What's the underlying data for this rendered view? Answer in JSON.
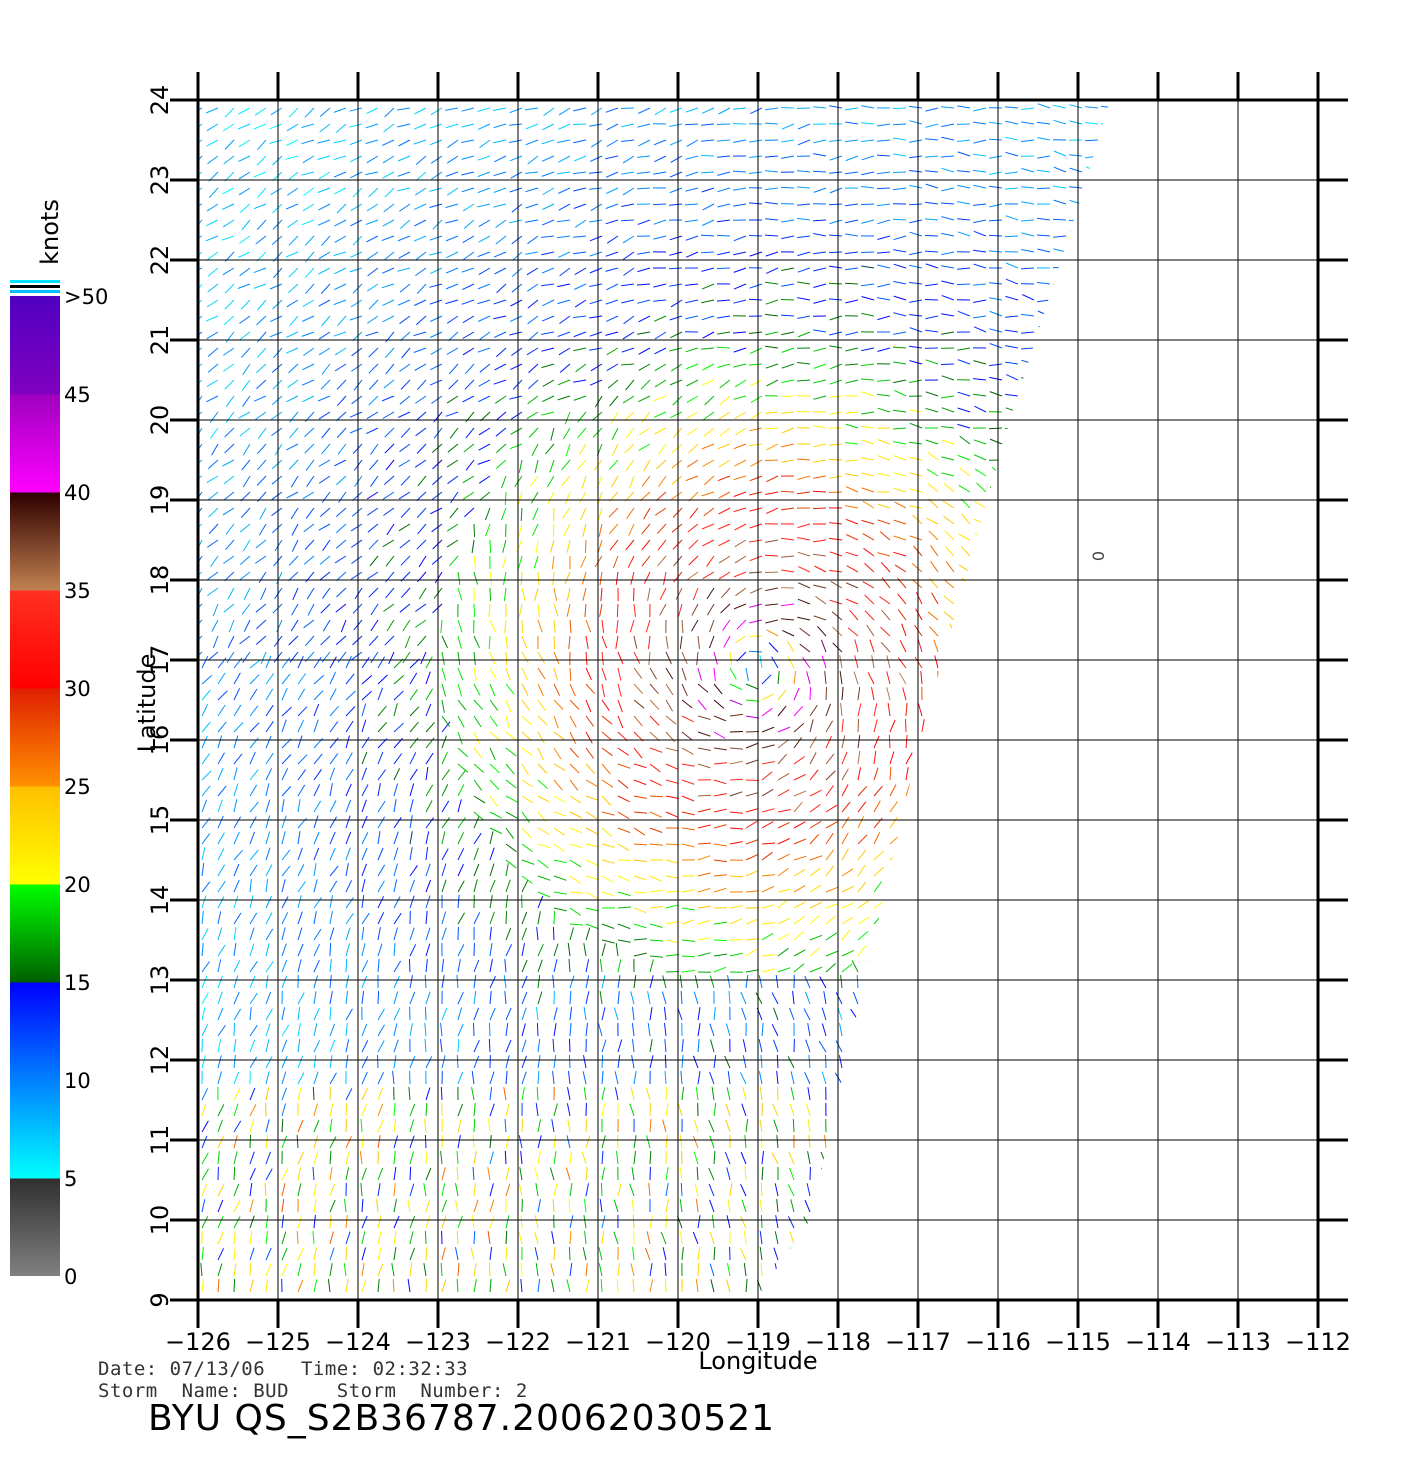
{
  "map": {
    "x_ticks": [
      "−126",
      "−125",
      "−124",
      "−123",
      "−122",
      "−121",
      "−120",
      "−119",
      "−118",
      "−117",
      "−116",
      "−115",
      "−114",
      "−113",
      "−112"
    ],
    "y_ticks": [
      "9",
      "10",
      "11",
      "12",
      "13",
      "14",
      "15",
      "16",
      "17",
      "18",
      "19",
      "20",
      "21",
      "22",
      "23",
      "24"
    ],
    "x_label": "Longitude",
    "y_label": "Latitude",
    "lon_range": [
      -126,
      -112
    ],
    "lat_range": [
      9,
      24
    ],
    "annotation": "0",
    "colorbar": {
      "unit": "knots",
      "labels": [
        ">50",
        "45",
        "40",
        "35",
        "30",
        "25",
        "20",
        "15",
        "10",
        "5",
        "0"
      ],
      "stops": [
        {
          "value": 0,
          "color": "#808080"
        },
        {
          "value": 5,
          "color": "#303030"
        },
        {
          "value": 5.01,
          "color": "#00ffff"
        },
        {
          "value": 10,
          "color": "#0080ff"
        },
        {
          "value": 15,
          "color": "#0000ff"
        },
        {
          "value": 15.01,
          "color": "#006000"
        },
        {
          "value": 20,
          "color": "#00ff00"
        },
        {
          "value": 20.01,
          "color": "#ffff00"
        },
        {
          "value": 25,
          "color": "#ffc000"
        },
        {
          "value": 25.01,
          "color": "#ff9000"
        },
        {
          "value": 30,
          "color": "#e02000"
        },
        {
          "value": 30.01,
          "color": "#ff0000"
        },
        {
          "value": 35,
          "color": "#ff3020"
        },
        {
          "value": 35.01,
          "color": "#c08050"
        },
        {
          "value": 40,
          "color": "#300000"
        },
        {
          "value": 40.01,
          "color": "#ff00ff"
        },
        {
          "value": 45,
          "color": "#a000c0"
        },
        {
          "value": 50,
          "color": "#5000c0"
        }
      ]
    }
  },
  "info": {
    "date_line": "Date: 07/13/06   Time: 02:32:33",
    "storm_line": "Storm  Name: BUD    Storm  Number: 2",
    "product": "BYU  QS_S2B36787.20062030521"
  }
}
